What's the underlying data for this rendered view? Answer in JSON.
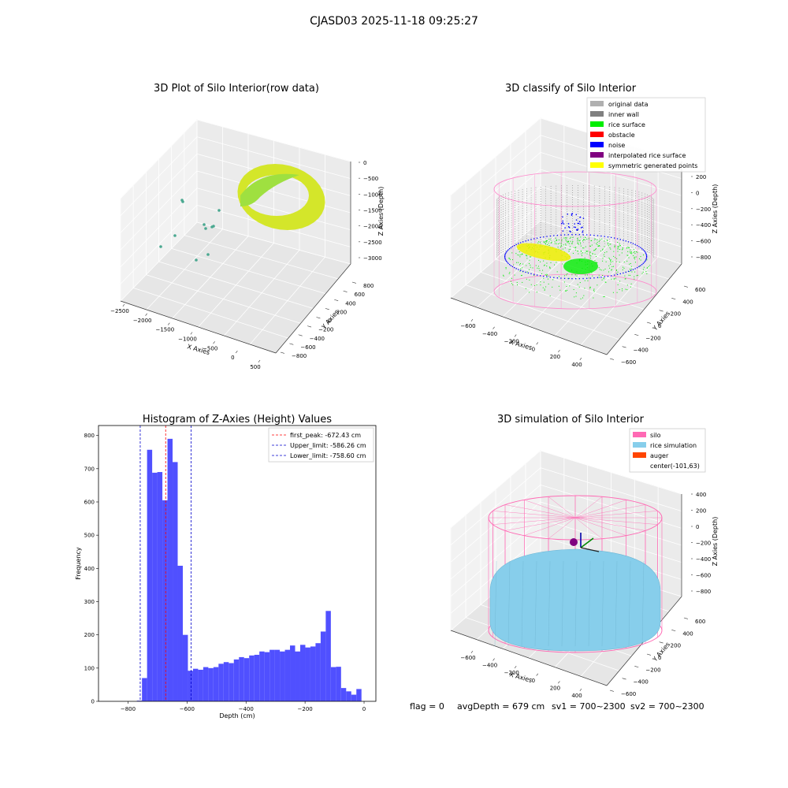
{
  "figure": {
    "suptitle": "CJASD03 2025-11-18 09:25:27",
    "footer": {
      "flag": "flag = 0",
      "avg_depth": "avgDepth = 679 cm",
      "sv1": "sv1 = 700~2300",
      "sv2": "sv2 = 700~2300"
    }
  },
  "panels": {
    "raw": {
      "title": "3D Plot of Silo Interior(row data)",
      "xlabel": "X Axies",
      "ylabel": "Y Axies",
      "zlabel": "Z Axies (Depth)",
      "x_ticks": [
        "−2500",
        "−2000",
        "−1500",
        "−1000",
        "−500",
        "0",
        "500"
      ],
      "y_ticks": [
        "−800",
        "−600",
        "−400",
        "−200",
        "0",
        "200",
        "400",
        "600",
        "800"
      ],
      "z_ticks": [
        "0",
        "−500",
        "−1000",
        "−1500",
        "−2000",
        "−2500",
        "−3000"
      ],
      "colors": {
        "outer": "#d4e62a",
        "inner": "#9fe040",
        "points": "#4aa890"
      }
    },
    "classify": {
      "title": "3D classify of Silo Interior",
      "xlabel": "X Axies",
      "ylabel": "Y Axies",
      "zlabel": "Z Axies (Depth)",
      "x_ticks": [
        "−600",
        "−400",
        "−200",
        "0",
        "200",
        "400"
      ],
      "y_ticks": [
        "−600",
        "−400",
        "−200",
        "0",
        "200",
        "400",
        "600"
      ],
      "z_ticks": [
        "200",
        "0",
        "−200",
        "−400",
        "−600",
        "−800"
      ],
      "legend": [
        {
          "label": "original data",
          "color": "#b0b0b0"
        },
        {
          "label": "inner wall",
          "color": "#808080"
        },
        {
          "label": "rice surface",
          "color": "#00ee00"
        },
        {
          "label": "obstacle",
          "color": "#ff0000"
        },
        {
          "label": "noise",
          "color": "#0000ff"
        },
        {
          "label": "interpolated rice surface",
          "color": "#800080"
        },
        {
          "label": "symmetric generated points",
          "color": "#ffff00"
        }
      ],
      "cylinder_color": "#ff88cc"
    },
    "simulation": {
      "title": "3D simulation of Silo Interior",
      "xlabel": "X Axies",
      "ylabel": "Y Axies",
      "zlabel": "Z Axies (Depth)",
      "x_ticks": [
        "−600",
        "−400",
        "−200",
        "0",
        "200",
        "400"
      ],
      "y_ticks": [
        "−600",
        "−400",
        "−200",
        "0",
        "200",
        "400",
        "600"
      ],
      "z_ticks": [
        "400",
        "200",
        "0",
        "−200",
        "−400",
        "−600",
        "−800"
      ],
      "legend": [
        {
          "label": "silo",
          "color": "#ff69b4"
        },
        {
          "label": "rice simulation",
          "color": "#87ceeb"
        },
        {
          "label": "auger",
          "color": "#ff4500"
        },
        {
          "label": "center(-101,63)",
          "color": ""
        }
      ]
    }
  },
  "chart_data": {
    "type": "bar",
    "title": "Histogram of Z-Axies (Height) Values",
    "xlabel": "Depth (cm)",
    "ylabel": "Frequency",
    "xlim": [
      -900,
      40
    ],
    "ylim": [
      0,
      830
    ],
    "x_ticks": [
      -800,
      -600,
      -400,
      -200,
      0
    ],
    "y_ticks": [
      0,
      100,
      200,
      300,
      400,
      500,
      600,
      700,
      800
    ],
    "bar_color": "#5050ff",
    "bin_width": 17.3,
    "bin_start": -770,
    "values": [
      2,
      70,
      757,
      688,
      690,
      605,
      790,
      720,
      408,
      200,
      92,
      98,
      95,
      103,
      100,
      103,
      113,
      118,
      115,
      126,
      133,
      130,
      138,
      140,
      150,
      148,
      155,
      155,
      150,
      155,
      168,
      150,
      170,
      162,
      165,
      175,
      210,
      272,
      103,
      104,
      40,
      30,
      20,
      37
    ],
    "lines": [
      {
        "label": "first_peak: -672.43 cm",
        "x": -672.43,
        "color": "#ff0000"
      },
      {
        "label": "Upper_limit: -586.26 cm",
        "x": -586.26,
        "color": "#0000cc"
      },
      {
        "label": "Lower_limit: -758.60 cm",
        "x": -758.6,
        "color": "#0000cc"
      }
    ],
    "legend_position": "top-right"
  }
}
